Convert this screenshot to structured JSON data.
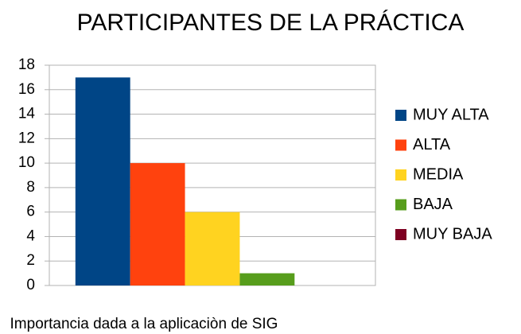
{
  "chart_data": {
    "type": "bar",
    "title": "PARTICIPANTES DE LA PRÁCTICA",
    "categories": [
      "Importancia dada a la aplicaciòn de SIG"
    ],
    "series": [
      {
        "name": "MUY ALTA",
        "color": "#004586",
        "values": [
          17
        ]
      },
      {
        "name": "ALTA",
        "color": "#ff420e",
        "values": [
          10
        ]
      },
      {
        "name": "MEDIA",
        "color": "#ffd320",
        "values": [
          6
        ]
      },
      {
        "name": "BAJA",
        "color": "#579d1c",
        "values": [
          1
        ]
      },
      {
        "name": "MUY BAJA",
        "color": "#7e0021",
        "values": [
          0
        ]
      }
    ],
    "ylim": [
      0,
      18
    ],
    "yticks": [
      0,
      2,
      4,
      6,
      8,
      10,
      12,
      14,
      16,
      18
    ],
    "grid": true,
    "legend": "right"
  }
}
